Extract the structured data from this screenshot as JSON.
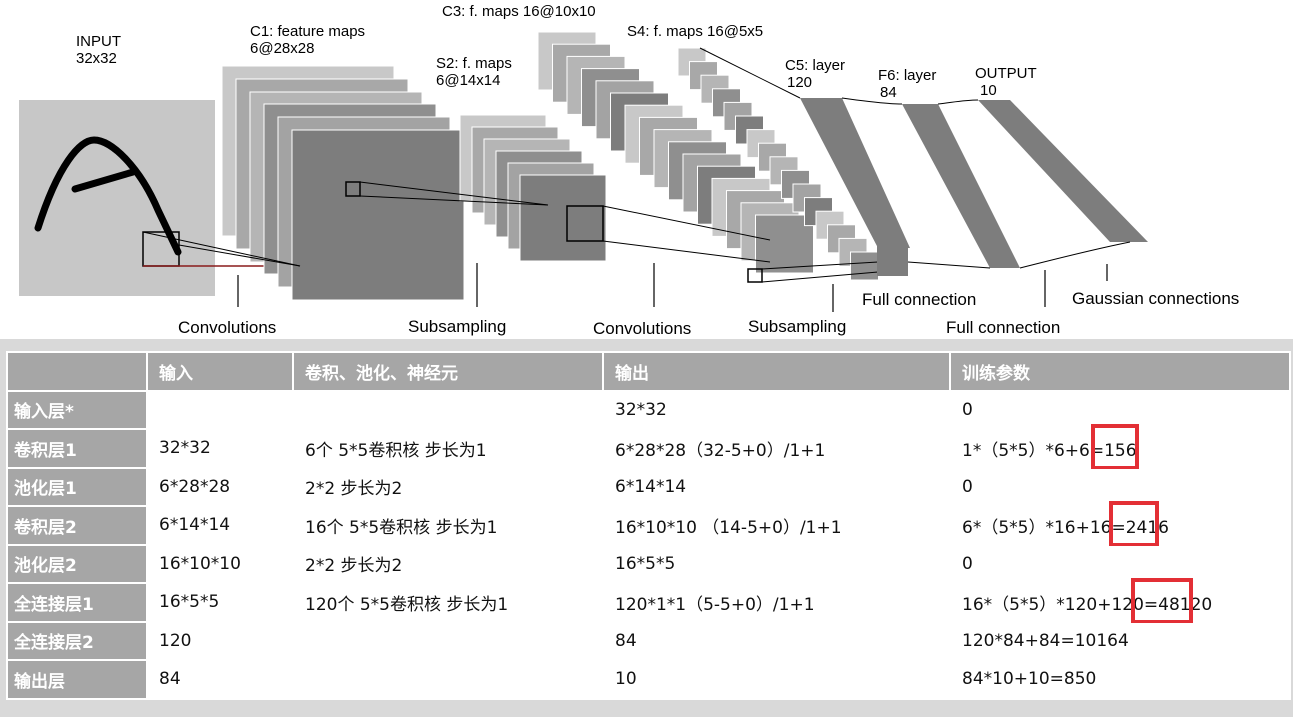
{
  "diagram": {
    "input_label": [
      "INPUT",
      "32x32"
    ],
    "c1_label": [
      "C1: feature maps",
      "6@28x28"
    ],
    "s2_label": [
      "S2: f. maps",
      "6@14x14"
    ],
    "c3_label": "C3: f. maps 16@10x10",
    "s4_label": "S4: f. maps 16@5x5",
    "c5_label": [
      "C5: layer",
      "120"
    ],
    "f6_label": [
      "F6: layer",
      "84"
    ],
    "output_label": [
      "OUTPUT",
      "10"
    ],
    "operations": {
      "conv1": "Convolutions",
      "sub1": "Subsampling",
      "conv2": "Convolutions",
      "sub2": "Subsampling",
      "full1": "Full connection",
      "full2": "Full connection",
      "gauss": "Gaussian connections"
    }
  },
  "table": {
    "headers": [
      "",
      "输入",
      "卷积、池化、神经元",
      "输出",
      "训练参数"
    ],
    "rows": [
      {
        "layer": "输入层*",
        "input": "",
        "op": "",
        "output": "32*32",
        "params": "0"
      },
      {
        "layer": "卷积层1",
        "input": "32*32",
        "op": "6个 5*5卷积核 步长为1",
        "output": "6*28*28（32-5+0）/1+1",
        "params": "1*（5*5）*6+6=156"
      },
      {
        "layer": "池化层1",
        "input": "6*28*28",
        "op": "2*2 步长为2",
        "output": "6*14*14",
        "params": "0"
      },
      {
        "layer": "卷积层2",
        "input": "6*14*14",
        "op": "16个 5*5卷积核 步长为1",
        "output": "16*10*10 （14-5+0）/1+1",
        "params": "6*（5*5）*16+16=2416"
      },
      {
        "layer": "池化层2",
        "input": "16*10*10",
        "op": "2*2 步长为2",
        "output": "16*5*5",
        "params": "0"
      },
      {
        "layer": "全连接层1",
        "input": "16*5*5",
        "op": "120个 5*5卷积核 步长为1",
        "output": "120*1*1（5-5+0）/1+1",
        "params": "16*（5*5）*120+120=48120"
      },
      {
        "layer": "全连接层2",
        "input": "120",
        "op": "",
        "output": "84",
        "params": "120*84+84=10164"
      },
      {
        "layer": "输出层",
        "input": "84",
        "op": "",
        "output": "10",
        "params": "84*10+10=850"
      }
    ]
  },
  "colors": {
    "highlight": "#e32f35",
    "header_bg": "#a6a6a6",
    "panel_bg": "#d9d9d9"
  }
}
